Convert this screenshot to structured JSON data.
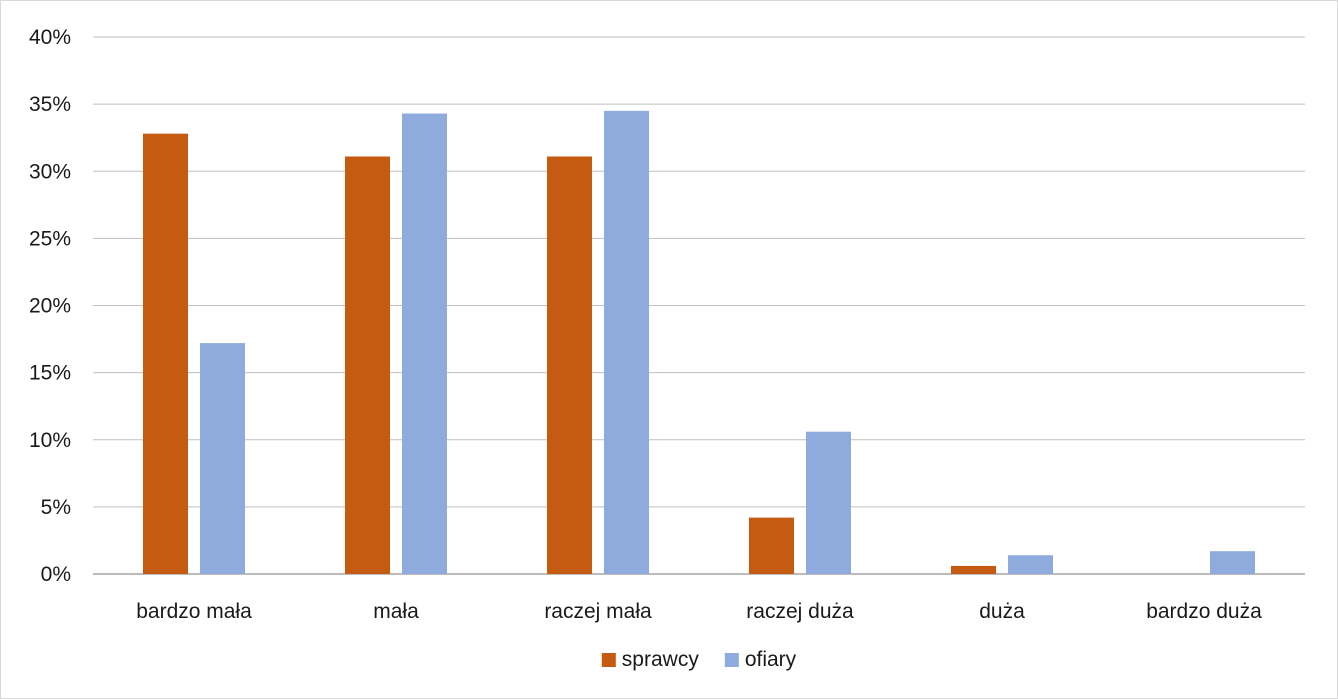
{
  "chart_data": {
    "type": "bar",
    "title": "",
    "xlabel": "",
    "ylabel": "",
    "categories": [
      "bardzo mała",
      "mała",
      "raczej mała",
      "raczej duża",
      "duża",
      "bardzo duża"
    ],
    "series": [
      {
        "name": "sprawcy",
        "color": "#c55a11",
        "values": [
          32.8,
          31.1,
          31.1,
          4.2,
          0.6,
          0
        ]
      },
      {
        "name": "ofiary",
        "color": "#8faadc",
        "values": [
          17.2,
          34.3,
          34.5,
          10.6,
          1.4,
          1.7
        ]
      }
    ],
    "ylim": [
      0,
      40
    ],
    "yticks": [
      0,
      5,
      10,
      15,
      20,
      25,
      30,
      35,
      40
    ],
    "ytick_labels": [
      "0%",
      "5%",
      "10%",
      "15%",
      "20%",
      "25%",
      "30%",
      "35%",
      "40%"
    ],
    "grid": true,
    "legend_position": "bottom"
  }
}
